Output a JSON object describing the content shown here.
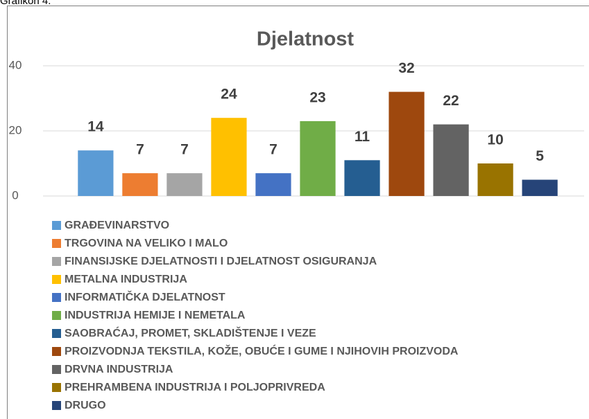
{
  "chart_data": {
    "type": "bar",
    "caption": "Grafikon 4.",
    "title": "Djelatnost",
    "categories": [
      null
    ],
    "series": [
      {
        "name": "GRAĐEVINARSTVO",
        "color": "#5b9bd5",
        "values": [
          14
        ]
      },
      {
        "name": "TRGOVINA NA VELIKO I MALO",
        "color": "#ed7d31",
        "values": [
          7
        ]
      },
      {
        "name": "FINANSIJSKE DJELATNOSTI I DJELATNOST OSIGURANJA",
        "color": "#a5a5a5",
        "values": [
          7
        ]
      },
      {
        "name": "METALNA INDUSTRIJA",
        "color": "#ffc000",
        "values": [
          24
        ]
      },
      {
        "name": "INFORMATIČKA DJELATNOST",
        "color": "#4472c4",
        "values": [
          7
        ]
      },
      {
        "name": "INDUSTRIJA HEMIJE I NEMETALA",
        "color": "#70ad47",
        "values": [
          23
        ]
      },
      {
        "name": "SAOBRAĆAJ, PROMET, SKLADIŠTENJE I VEZE",
        "color": "#255e91",
        "values": [
          11
        ]
      },
      {
        "name": "PROIZVODNJA TEKSTILA, KOŽE, OBUĆE I GUME I NJIHOVIH PROIZVODA",
        "color": "#9e480e",
        "values": [
          32
        ]
      },
      {
        "name": "DRVNA INDUSTRIJA",
        "color": "#636363",
        "values": [
          22
        ]
      },
      {
        "name": "PREHRAMBENA INDUSTRIJA I POLJOPRIVREDA",
        "color": "#997300",
        "values": [
          10
        ]
      },
      {
        "name": "DRUGO",
        "color": "#264478",
        "values": [
          5
        ]
      }
    ],
    "ylim": [
      0,
      40
    ],
    "yticks": [
      0,
      20,
      40
    ],
    "grid": true,
    "legend": "bottom"
  }
}
